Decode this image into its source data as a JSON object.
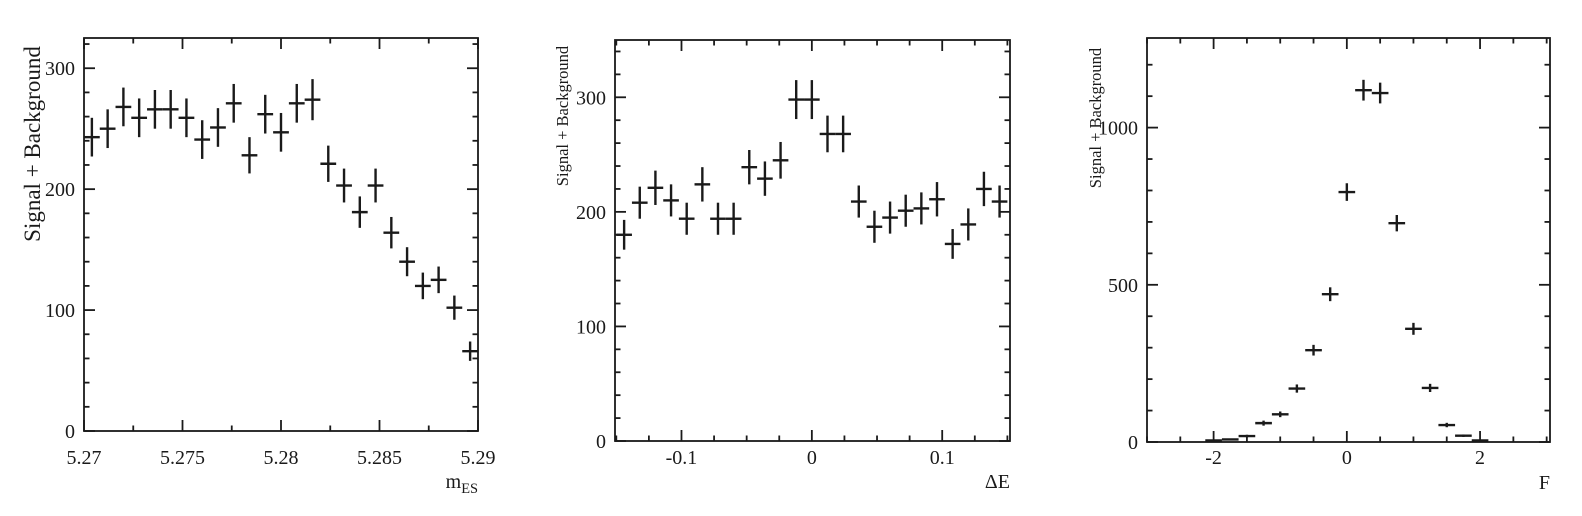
{
  "page": {
    "background_color": "#ffffff",
    "ink_color": "#1a1a1a"
  },
  "chart_data": [
    {
      "id": "mes",
      "type": "scatter",
      "marker": "cross-errorbar",
      "title": "",
      "ylabel": "Signal + Background",
      "xlabel": "m",
      "xlabel_sub": "ES",
      "grid": false,
      "legend": "none",
      "xlim": [
        5.27,
        5.29
      ],
      "ylim": [
        0,
        325
      ],
      "xticks": [
        5.27,
        5.275,
        5.28,
        5.285,
        5.29
      ],
      "xtick_labels": [
        "5.27",
        "5.275",
        "5.28",
        "5.285",
        "5.29"
      ],
      "xtick_minor_step": 0.0025,
      "yticks": [
        0,
        100,
        200,
        300
      ],
      "ytick_labels": [
        "0",
        "100",
        "200",
        "300"
      ],
      "ytick_minor_step": 20,
      "bin_halfwidth": 0.0004,
      "x": [
        5.2704,
        5.2712,
        5.272,
        5.2728,
        5.2736,
        5.2744,
        5.2752,
        5.276,
        5.2768,
        5.2776,
        5.2784,
        5.2792,
        5.28,
        5.2808,
        5.2816,
        5.2824,
        5.2832,
        5.284,
        5.2848,
        5.2856,
        5.2864,
        5.2872,
        5.288,
        5.2888,
        5.2896
      ],
      "y": [
        243,
        250,
        268,
        259,
        266,
        266,
        259,
        241,
        251,
        271,
        228,
        262,
        247,
        271,
        274,
        221,
        203,
        181,
        203,
        164,
        140,
        120,
        125,
        102,
        66
      ],
      "yerr": [
        16,
        16,
        16,
        16,
        16,
        16,
        16,
        16,
        16,
        16,
        15,
        16,
        16,
        16,
        17,
        15,
        14,
        13,
        14,
        13,
        12,
        11,
        11,
        10,
        8
      ]
    },
    {
      "id": "delta-e",
      "type": "scatter",
      "marker": "cross-errorbar",
      "title": "",
      "ylabel": "Signal + Background",
      "xlabel": "ΔE",
      "xlabel_sub": "",
      "grid": false,
      "legend": "none",
      "xlim": [
        -0.151,
        0.152
      ],
      "ylim": [
        0,
        350
      ],
      "xticks": [
        -0.1,
        0,
        0.1
      ],
      "xtick_labels": [
        "-0.1",
        "0",
        "0.1"
      ],
      "xtick_minor_step": 0.025,
      "yticks": [
        0,
        100,
        200,
        300
      ],
      "ytick_labels": [
        "0",
        "100",
        "200",
        "300"
      ],
      "ytick_minor_step": 20,
      "bin_halfwidth": 0.006,
      "x": [
        -0.144,
        -0.132,
        -0.12,
        -0.108,
        -0.096,
        -0.084,
        -0.072,
        -0.06,
        -0.048,
        -0.036,
        -0.024,
        -0.012,
        0.0,
        0.012,
        0.024,
        0.036,
        0.048,
        0.06,
        0.072,
        0.084,
        0.096,
        0.108,
        0.12,
        0.132,
        0.144
      ],
      "y": [
        180,
        208,
        221,
        210,
        194,
        224,
        194,
        194,
        239,
        229,
        245,
        298,
        298,
        268,
        268,
        209,
        187,
        195,
        201,
        203,
        211,
        172,
        189,
        220,
        209
      ],
      "yerr": [
        13,
        14,
        15,
        14,
        14,
        15,
        14,
        14,
        15,
        15,
        16,
        17,
        17,
        16,
        16,
        14,
        14,
        14,
        14,
        14,
        15,
        13,
        14,
        15,
        14
      ]
    },
    {
      "id": "fisher",
      "type": "scatter",
      "marker": "cross-errorbar",
      "title": "",
      "ylabel": "Signal + Background",
      "xlabel": "F",
      "xlabel_sub": "",
      "grid": false,
      "legend": "none",
      "xlim": [
        -3.0,
        3.05
      ],
      "ylim": [
        0,
        1285
      ],
      "xticks": [
        -2,
        0,
        2
      ],
      "xtick_labels": [
        "-2",
        "0",
        "2"
      ],
      "xtick_minor_step": 0.5,
      "yticks": [
        0,
        500,
        1000
      ],
      "ytick_labels": [
        "0",
        "500",
        "1000"
      ],
      "ytick_minor_step": 100,
      "bin_halfwidth": 0.125,
      "x": [
        -2,
        -1.75,
        -1.5,
        -1.25,
        -1,
        -0.75,
        -0.5,
        -0.25,
        0,
        0.25,
        0.5,
        0.75,
        1,
        1.25,
        1.5,
        1.75,
        2
      ],
      "y": [
        5,
        8,
        19,
        60,
        88,
        170,
        292,
        470,
        795,
        1119,
        1110,
        696,
        360,
        172,
        54,
        20,
        5
      ],
      "yerr": [
        2,
        3,
        4,
        8,
        9,
        13,
        17,
        22,
        28,
        33,
        33,
        26,
        19,
        13,
        7,
        4,
        2
      ]
    }
  ]
}
